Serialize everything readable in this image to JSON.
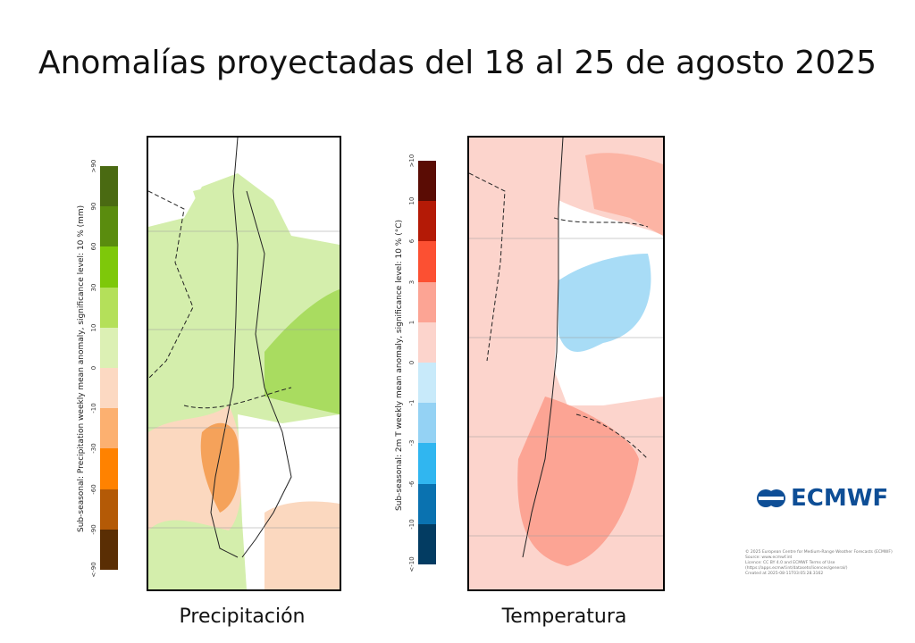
{
  "title": "Anomalías proyectadas del 18 al 25 de agosto 2025",
  "precipitation": {
    "caption": "Precipitación",
    "colorbar_label": "Sub-seasonal: Precipitation weekly mean anomaly, significance level: 10 % (mm)",
    "ticks": [
      ">90",
      "90",
      "60",
      "30",
      "10",
      "0",
      "-10",
      "-30",
      "-60",
      "-90",
      "<-90"
    ],
    "colors": [
      "#4a6a12",
      "#5a8c0e",
      "#7ec80a",
      "#b4e05a",
      "#dcf0b4",
      "#fcd9c2",
      "#fcb070",
      "#ff8200",
      "#b45a06",
      "#5a2e04"
    ]
  },
  "temperature": {
    "caption": "Temperatura",
    "colorbar_label": "Sub-seasonal: 2m T weekly mean anomaly, significance level: 10 % (°C)",
    "ticks": [
      ">10",
      "10",
      "6",
      "3",
      "1",
      "0",
      "-1",
      "-3",
      "-6",
      "-10",
      "<-10"
    ],
    "colors": [
      "#5a0c04",
      "#b41a06",
      "#fc5032",
      "#fca494",
      "#fcd4cc",
      "#c8eafa",
      "#94d2f4",
      "#30b6f0",
      "#0a72b0",
      "#033c62"
    ]
  },
  "logo": {
    "text": "ECMWF"
  },
  "credits": [
    "© 2025 European Centre for Medium-Range Weather Forecasts (ECMWF)",
    "Source: www.ecmwf.int",
    "Licence: CC BY 4.0 and ECMWF Terms of Use (https://apps.ecmwf.int/datasets/licences/general/)",
    "Created at 2025-08-11T03:05:28.3162"
  ]
}
